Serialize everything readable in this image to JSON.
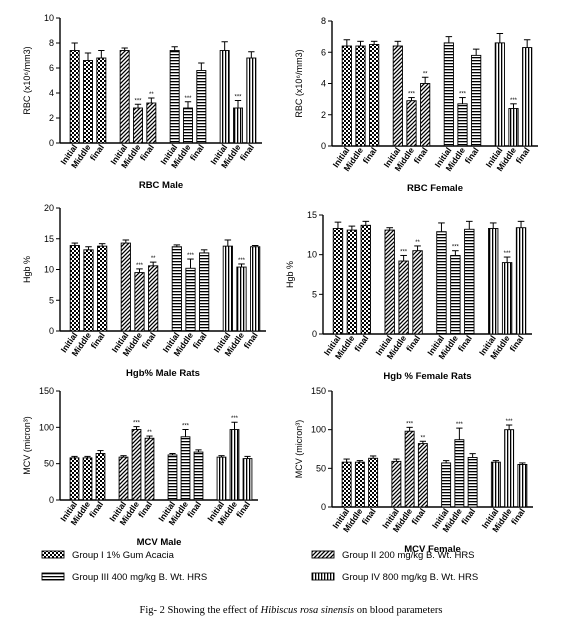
{
  "caption": {
    "prefix": "Fig- 2 Showing the effect of ",
    "italic": "Hibiscus rosa sinensis",
    "suffix": " on blood parameters"
  },
  "groups": [
    {
      "name": "Group I 1% Gum Acacia",
      "pattern": "checker"
    },
    {
      "name": "Group II 200 mg/kg B. Wt. HRS",
      "pattern": "diag"
    },
    {
      "name": "Group III 400 mg/kg B. Wt. HRS",
      "pattern": "hstripe"
    },
    {
      "name": "Group IV  800 mg/kg B. Wt. HRS",
      "pattern": "vstripe"
    }
  ],
  "chart_data": [
    {
      "type": "bar",
      "title": "RBC Male",
      "ylabel": "RBC (x10⁶/mm3)",
      "ylim": [
        0,
        10
      ],
      "yticks": [
        0,
        2,
        4,
        6,
        8,
        10
      ],
      "categories": [
        "Initial",
        "Middle",
        "final"
      ],
      "series": [
        {
          "name": "Group I 1% Gum Acacia",
          "values": [
            7.4,
            6.6,
            6.8
          ],
          "errors": [
            0.6,
            0.6,
            0.6
          ],
          "sig": [
            "",
            "",
            ""
          ]
        },
        {
          "name": "Group II 200 mg/kg B. Wt. HRS",
          "values": [
            7.4,
            2.8,
            3.2
          ],
          "errors": [
            0.2,
            0.3,
            0.4
          ],
          "sig": [
            "",
            "***",
            "**"
          ]
        },
        {
          "name": "Group III 400 mg/kg B. Wt. HRS",
          "values": [
            7.4,
            2.8,
            5.8
          ],
          "errors": [
            0.3,
            0.5,
            0.6
          ],
          "sig": [
            "",
            "***",
            ""
          ]
        },
        {
          "name": "Group IV  800 mg/kg B. Wt. HRS",
          "values": [
            7.4,
            2.8,
            6.8
          ],
          "errors": [
            0.7,
            0.6,
            0.5
          ],
          "sig": [
            "",
            "***",
            ""
          ]
        }
      ]
    },
    {
      "type": "bar",
      "title": "RBC Female",
      "ylabel": "RBC (x10⁶/mm3)",
      "ylim": [
        0,
        8
      ],
      "yticks": [
        0,
        2,
        4,
        6,
        8
      ],
      "categories": [
        "Initial",
        "Middle",
        "final"
      ],
      "series": [
        {
          "name": "Group I 1% Gum Acacia",
          "values": [
            6.4,
            6.4,
            6.5
          ],
          "errors": [
            0.4,
            0.3,
            0.2
          ],
          "sig": [
            "",
            "",
            ""
          ]
        },
        {
          "name": "Group II 200 mg/kg B. Wt. HRS",
          "values": [
            6.4,
            2.9,
            4.0
          ],
          "errors": [
            0.3,
            0.2,
            0.4
          ],
          "sig": [
            "",
            "***",
            "**"
          ]
        },
        {
          "name": "Group III 400 mg/kg B. Wt. HRS",
          "values": [
            6.6,
            2.7,
            5.8
          ],
          "errors": [
            0.4,
            0.4,
            0.4
          ],
          "sig": [
            "",
            "***",
            ""
          ]
        },
        {
          "name": "Group IV  800 mg/kg B. Wt. HRS",
          "values": [
            6.6,
            2.4,
            6.3
          ],
          "errors": [
            0.6,
            0.3,
            0.5
          ],
          "sig": [
            "",
            "***",
            ""
          ]
        }
      ]
    },
    {
      "type": "bar",
      "title": "Hgb%  Male Rats",
      "ylabel": "Hgb %",
      "ylim": [
        0,
        20
      ],
      "yticks": [
        0,
        5,
        10,
        15,
        20
      ],
      "categories": [
        "Initial",
        "Middle",
        "final"
      ],
      "series": [
        {
          "name": "Group I 1% Gum Acacia",
          "values": [
            13.9,
            13.2,
            13.8
          ],
          "errors": [
            0.4,
            0.5,
            0.4
          ],
          "sig": [
            "",
            "",
            ""
          ]
        },
        {
          "name": "Group II 200 mg/kg B. Wt. HRS",
          "values": [
            14.3,
            9.5,
            10.6
          ],
          "errors": [
            0.5,
            0.6,
            0.6
          ],
          "sig": [
            "",
            "***",
            "**"
          ]
        },
        {
          "name": "Group III 400 mg/kg B. Wt. HRS",
          "values": [
            13.7,
            10.2,
            12.7
          ],
          "errors": [
            0.3,
            1.5,
            0.5
          ],
          "sig": [
            "",
            "***",
            ""
          ]
        },
        {
          "name": "Group IV  800 mg/kg B. Wt. HRS",
          "values": [
            13.8,
            10.4,
            13.7
          ],
          "errors": [
            1.0,
            0.5,
            0.2
          ],
          "sig": [
            "",
            "***",
            ""
          ]
        }
      ]
    },
    {
      "type": "bar",
      "title": "Hgb %  Female Rats",
      "ylabel": "Hgb %",
      "ylim": [
        0,
        15
      ],
      "yticks": [
        0,
        5,
        10,
        15
      ],
      "categories": [
        "Initial",
        "Middle",
        "final"
      ],
      "series": [
        {
          "name": "Group I 1% Gum Acacia",
          "values": [
            13.3,
            13.1,
            13.7
          ],
          "errors": [
            0.8,
            0.5,
            0.5
          ],
          "sig": [
            "",
            "",
            ""
          ]
        },
        {
          "name": "Group II 200 mg/kg B. Wt. HRS",
          "values": [
            13.1,
            9.2,
            10.5
          ],
          "errors": [
            0.3,
            0.7,
            0.6
          ],
          "sig": [
            "",
            "***",
            "**"
          ]
        },
        {
          "name": "Group III 400 mg/kg B. Wt. HRS",
          "values": [
            12.9,
            9.9,
            13.2
          ],
          "errors": [
            1.1,
            0.6,
            1.0
          ],
          "sig": [
            "",
            "***",
            ""
          ]
        },
        {
          "name": "Group IV  800 mg/kg B. Wt. HRS",
          "values": [
            13.3,
            9.0,
            13.4
          ],
          "errors": [
            0.7,
            0.7,
            0.8
          ],
          "sig": [
            "",
            "***",
            ""
          ]
        }
      ]
    },
    {
      "type": "bar",
      "title": "MCV Male",
      "ylabel": "MCV (micron³)",
      "ylim": [
        0,
        150
      ],
      "yticks": [
        0,
        50,
        100,
        150
      ],
      "categories": [
        "Initial",
        "Middle",
        "final"
      ],
      "series": [
        {
          "name": "Group I 1% Gum Acacia",
          "values": [
            58,
            58,
            64
          ],
          "errors": [
            2,
            2,
            4
          ],
          "sig": [
            "",
            "",
            ""
          ]
        },
        {
          "name": "Group II 200 mg/kg B. Wt. HRS",
          "values": [
            59,
            97,
            85
          ],
          "errors": [
            2,
            4,
            3
          ],
          "sig": [
            "",
            "***",
            "**"
          ]
        },
        {
          "name": "Group III 400 mg/kg B. Wt. HRS",
          "values": [
            62,
            87,
            66
          ],
          "errors": [
            2,
            10,
            3
          ],
          "sig": [
            "",
            "***",
            ""
          ]
        },
        {
          "name": "Group IV  800 mg/kg B. Wt. HRS",
          "values": [
            59,
            97,
            57
          ],
          "errors": [
            2,
            10,
            3
          ],
          "sig": [
            "",
            "***",
            ""
          ]
        }
      ]
    },
    {
      "type": "bar",
      "title": "MCV Female",
      "ylabel": "MCV (micron³)",
      "ylim": [
        0,
        150
      ],
      "yticks": [
        0,
        50,
        100,
        150
      ],
      "categories": [
        "Initial",
        "Middle",
        "final"
      ],
      "series": [
        {
          "name": "Group I 1% Gum Acacia",
          "values": [
            58,
            58,
            63
          ],
          "errors": [
            4,
            2,
            3
          ],
          "sig": [
            "",
            "",
            ""
          ]
        },
        {
          "name": "Group II 200 mg/kg B. Wt. HRS",
          "values": [
            59,
            98,
            82
          ],
          "errors": [
            3,
            5,
            3
          ],
          "sig": [
            "",
            "***",
            "**"
          ]
        },
        {
          "name": "Group III 400 mg/kg B. Wt. HRS",
          "values": [
            57,
            87,
            64
          ],
          "errors": [
            3,
            15,
            5
          ],
          "sig": [
            "",
            "***",
            ""
          ]
        },
        {
          "name": "Group IV  800 mg/kg B. Wt. HRS",
          "values": [
            58,
            100,
            55
          ],
          "errors": [
            2,
            6,
            2
          ],
          "sig": [
            "",
            "***",
            ""
          ]
        }
      ]
    }
  ]
}
